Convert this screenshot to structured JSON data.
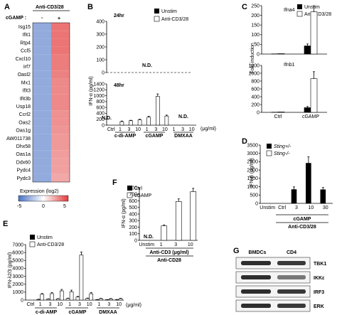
{
  "panels": {
    "A": {
      "letter": "A",
      "header": "Anti-CD3/28",
      "cgamp_label": "cGAMP :",
      "minus": "-",
      "plus": "+",
      "genes": [
        "Isg15",
        "Ifit1",
        "Rtp4",
        "Ccl5",
        "Cxcl10",
        "Irf7",
        "Oasl2",
        "Mx1",
        "Ifit3",
        "Ifit3b",
        "Usp18",
        "Ccrl2",
        "Oas2",
        "Oas1g",
        "AW011738",
        "Dhx58",
        "Oas1a",
        "Ddx60",
        "Pydc4",
        "Pydc3"
      ],
      "legend_title": "Expression (log2)",
      "legend_min": "-5",
      "legend_zero": "0",
      "legend_max": "5",
      "colors": {
        "low": "#4a72c4",
        "mid": "#ffffff",
        "high": "#e23a3a"
      }
    },
    "B": {
      "letter": "B",
      "ylabel": "IFN-α (pg/ml)",
      "legend": [
        "Unstim",
        "Anti-CD3/28"
      ],
      "top_label": "24hr",
      "top_nd": "N.D.",
      "bottom_label": "48hr",
      "yticks_top": [
        "0",
        "100",
        "200",
        "300",
        "400"
      ],
      "yticks_bottom": [
        "0",
        "200",
        "400",
        "600",
        "800",
        "1000",
        "1200",
        "1400"
      ],
      "xticks": [
        "Ctrl",
        "1",
        "3",
        "10",
        "1",
        "3",
        "10",
        "1",
        "3",
        "10"
      ],
      "unit": "(μg/ml)",
      "groups": [
        "c-di-AMP",
        "cGAMP",
        "DMXAA"
      ],
      "nd_left": "N.D.",
      "nd_right": "N.D."
    },
    "C": {
      "letter": "C",
      "ylabel": "Fold induction",
      "legend": [
        "Unstim",
        "Anti-CD3/28"
      ],
      "top_title": "Ifna4",
      "bottom_title": "Ifnb1",
      "yticks_top": [
        "0",
        "50",
        "100",
        "150",
        "200",
        "250"
      ],
      "yticks_bottom": [
        "0",
        "200",
        "400",
        "600",
        "800",
        "1000",
        "1200"
      ],
      "xticks": [
        "Ctrl",
        "cGAMP"
      ]
    },
    "D": {
      "letter": "D",
      "ylabel": "IFN-β (pg/ml)",
      "legend": [
        "Sting+/-",
        "Sting-/-"
      ],
      "yticks": [
        "0",
        "500",
        "1000",
        "1500",
        "2000",
        "2500",
        "3000",
        "3500"
      ],
      "xticks": [
        "Unstim",
        "Ctrl",
        "3",
        "10",
        "30"
      ],
      "group1": "cGAMP",
      "group2": "Anti-CD3/28"
    },
    "E": {
      "letter": "E",
      "ylabel": "IFN-λ2/3 (pg/ml)",
      "legend": [
        "Unstim",
        "Anti-CD3/28"
      ],
      "yticks": [
        "0",
        "1000",
        "2000",
        "3000",
        "4000",
        "5000",
        "6000",
        "7000"
      ],
      "xticks": [
        "Ctrl",
        "1",
        "3",
        "10",
        "1",
        "3",
        "10",
        "1",
        "3",
        "10"
      ],
      "unit": "(μg/ml)",
      "groups": [
        "c-di-AMP",
        "cGAMP",
        "DMXAA"
      ]
    },
    "F": {
      "letter": "F",
      "ylabel": "IFN-α (pg/ml)",
      "legend": [
        "Ctrl",
        "cGAMP"
      ],
      "yticks": [
        "0",
        "100",
        "200",
        "300",
        "400",
        "500",
        "600",
        "700",
        "800"
      ],
      "xticks": [
        "Unstim",
        "1",
        "3",
        "10"
      ],
      "nd": "N.D.",
      "group1": "Anti-CD3 (μg/ml)",
      "group2": "Anti-CD28"
    },
    "G": {
      "letter": "G",
      "col1": "BMDCs",
      "col2": "CD4",
      "rows": [
        "TBK1",
        "IKKε",
        "IRF3",
        "ERK"
      ]
    }
  },
  "chart_data": [
    {
      "type": "heatmap",
      "panel": "A",
      "title": "Anti-CD3/28",
      "columns": [
        "-",
        "+"
      ],
      "rows": [
        "Isg15",
        "Ifit1",
        "Rtp4",
        "Ccl5",
        "Cxcl10",
        "Irf7",
        "Oasl2",
        "Mx1",
        "Ifit3",
        "Ifit3b",
        "Usp18",
        "Ccrl2",
        "Oas2",
        "Oas1g",
        "AW011738",
        "Dhx58",
        "Oas1a",
        "Ddx60",
        "Pydc4",
        "Pydc3"
      ],
      "values": [
        [
          -3,
          3.5
        ],
        [
          -3,
          3.5
        ],
        [
          -3,
          3.5
        ],
        [
          -3,
          3.5
        ],
        [
          -3,
          3.3
        ],
        [
          -3,
          3.3
        ],
        [
          -3,
          3.2
        ],
        [
          -3,
          3
        ],
        [
          -3,
          3
        ],
        [
          -3,
          3
        ],
        [
          -3,
          3
        ],
        [
          -3,
          2.8
        ],
        [
          -3,
          2.8
        ],
        [
          -3,
          2.7
        ],
        [
          -3,
          2.6
        ],
        [
          -3,
          2.6
        ],
        [
          -3,
          2.5
        ],
        [
          -3,
          2.4
        ],
        [
          -3,
          2.4
        ],
        [
          -3,
          2.2
        ]
      ],
      "zlim": [
        -5,
        5
      ]
    },
    {
      "type": "bar",
      "panel": "B-48hr",
      "ylim": [
        0,
        1400
      ],
      "categories": [
        "Ctrl",
        "1",
        "3",
        "10",
        "1",
        "3",
        "10",
        "1",
        "3",
        "10"
      ],
      "series": [
        {
          "name": "Unstim",
          "values": [
            0,
            0,
            0,
            0,
            0,
            0,
            0,
            0,
            0,
            0
          ]
        },
        {
          "name": "Anti-CD3/28",
          "values": [
            0,
            120,
            150,
            180,
            270,
            980,
            310,
            0,
            0,
            0
          ],
          "errors": [
            0,
            20,
            15,
            20,
            30,
            80,
            30,
            0,
            0,
            0
          ]
        }
      ]
    },
    {
      "type": "bar",
      "panel": "C-Ifna4",
      "ylim": [
        0,
        250
      ],
      "categories": [
        "Ctrl",
        "cGAMP"
      ],
      "series": [
        {
          "name": "Unstim",
          "values": [
            1,
            42
          ],
          "errors": [
            0,
            10
          ]
        },
        {
          "name": "Anti-CD3/28",
          "values": [
            2,
            218
          ],
          "errors": [
            0,
            30
          ]
        }
      ]
    },
    {
      "type": "bar",
      "panel": "C-Ifnb1",
      "ylim": [
        0,
        1200
      ],
      "categories": [
        "Ctrl",
        "cGAMP"
      ],
      "series": [
        {
          "name": "Unstim",
          "values": [
            5,
            120
          ],
          "errors": [
            0,
            30
          ]
        },
        {
          "name": "Anti-CD3/28",
          "values": [
            10,
            860
          ],
          "errors": [
            0,
            180
          ]
        }
      ]
    },
    {
      "type": "bar",
      "panel": "D",
      "ylim": [
        0,
        3500
      ],
      "categories": [
        "Unstim",
        "Ctrl",
        "3",
        "10",
        "30"
      ],
      "series": [
        {
          "name": "Sting+/-",
          "values": [
            0,
            0,
            830,
            2410,
            820
          ],
          "errors": [
            0,
            0,
            160,
            380,
            130
          ]
        },
        {
          "name": "Sting-/-",
          "values": [
            0,
            0,
            0,
            0,
            0
          ]
        }
      ]
    },
    {
      "type": "bar",
      "panel": "E",
      "ylim": [
        0,
        7000
      ],
      "categories": [
        "Ctrl",
        "1",
        "3",
        "10",
        "1",
        "3",
        "10",
        "1",
        "3",
        "10"
      ],
      "series": [
        {
          "name": "Unstim",
          "values": [
            0,
            80,
            120,
            150,
            200,
            380,
            200,
            50,
            40,
            50
          ],
          "errors": [
            0,
            30,
            30,
            40,
            40,
            80,
            50,
            20,
            20,
            20
          ]
        },
        {
          "name": "Anti-CD3/28",
          "values": [
            0,
            720,
            810,
            1160,
            1050,
            5680,
            800,
            180,
            150,
            180
          ],
          "errors": [
            0,
            120,
            150,
            180,
            200,
            380,
            150,
            50,
            50,
            50
          ]
        }
      ]
    },
    {
      "type": "bar",
      "panel": "F",
      "ylim": [
        0,
        800
      ],
      "categories": [
        "Unstim",
        "1",
        "3",
        "10"
      ],
      "series": [
        {
          "name": "Ctrl",
          "values": [
            0,
            0,
            0,
            0
          ]
        },
        {
          "name": "cGAMP",
          "values": [
            0,
            220,
            590,
            740
          ],
          "errors": [
            0,
            15,
            40,
            50
          ]
        }
      ]
    }
  ]
}
